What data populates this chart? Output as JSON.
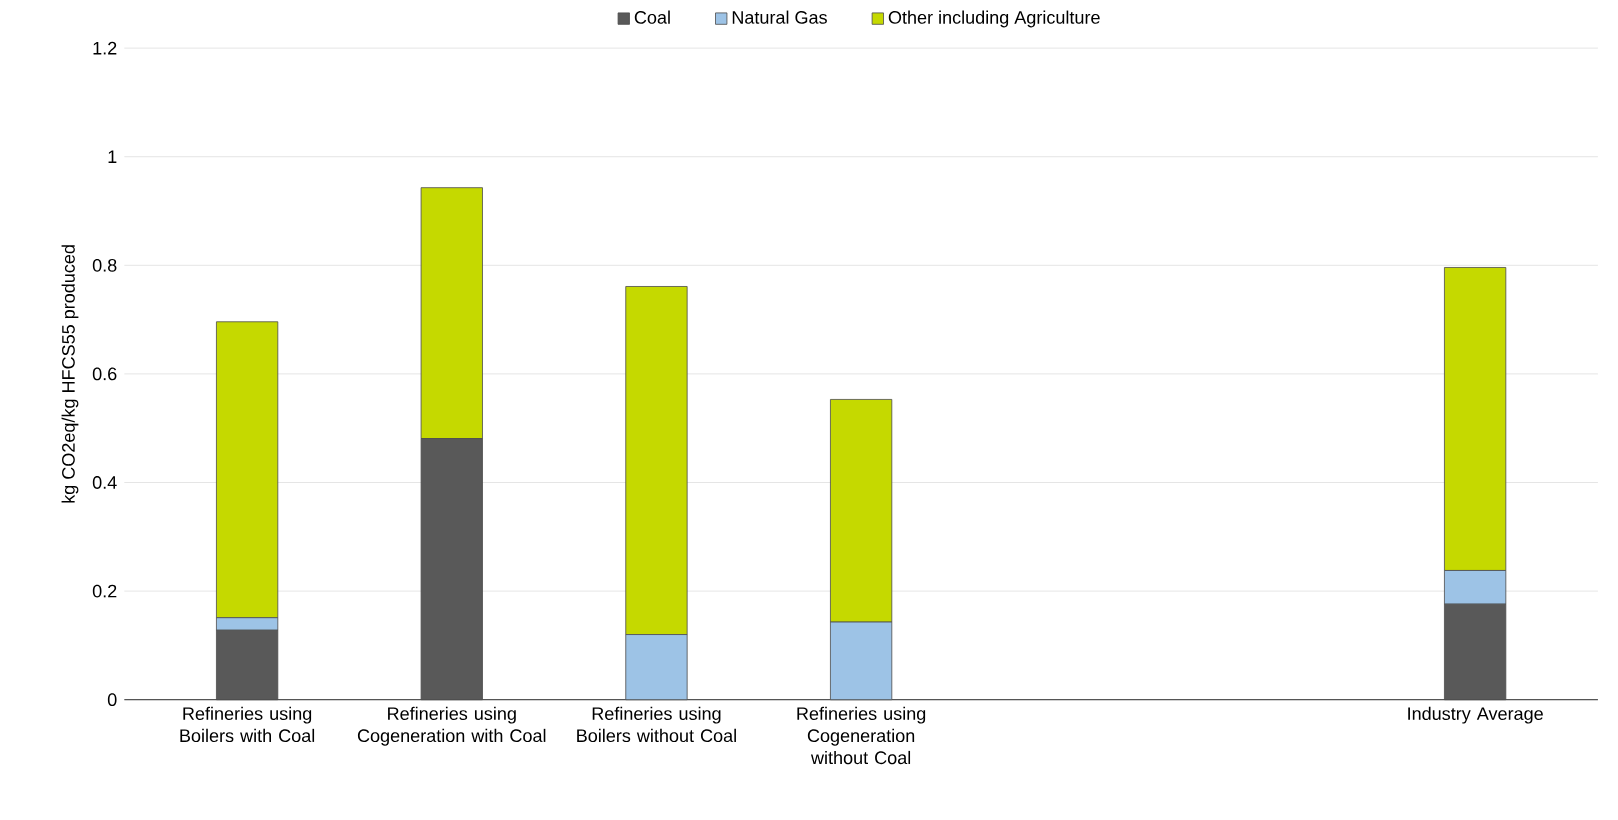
{
  "chart_data": {
    "type": "bar",
    "stacked": true,
    "ylabel": "kg CO2eq/kg HFCS55 produced",
    "categories": [
      "Refineries using Boilers with Coal",
      "Refineries using Cogeneration with Coal",
      "Refineries using Boilers without Coal",
      "Refineries using Cogeneration without Coal",
      null,
      null,
      "Industry Average"
    ],
    "series": [
      {
        "name": "Coal",
        "color": "#595959",
        "values": [
          0.128,
          0.481,
          0,
          0,
          null,
          null,
          0.176
        ]
      },
      {
        "name": "Natural Gas",
        "color": "#9dc3e6",
        "values": [
          0.023,
          0,
          0.12,
          0.143,
          null,
          null,
          0.062
        ]
      },
      {
        "name": "Other including Agriculture",
        "color": "#c5d900",
        "values": [
          0.545,
          0.462,
          0.641,
          0.41,
          null,
          null,
          0.558
        ]
      }
    ],
    "ylim": [
      0,
      1.2
    ],
    "yticks": [
      0,
      0.2,
      0.4,
      0.6,
      0.8,
      1,
      1.2
    ],
    "grid": "y",
    "legend": "top"
  }
}
